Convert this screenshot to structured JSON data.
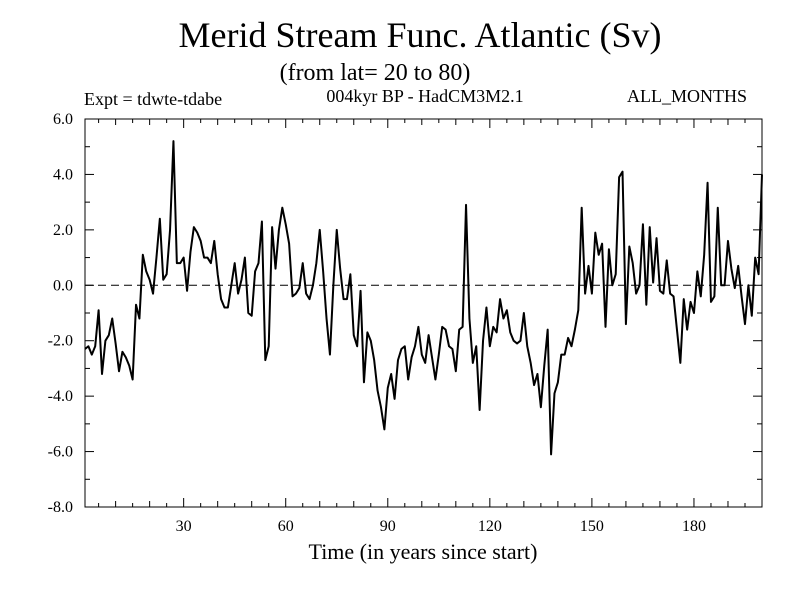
{
  "chart_data": {
    "type": "line",
    "title": "Merid Stream Func. Atlantic (Sv)",
    "subtitle": "(from lat= 20 to 80)",
    "experiment": "Expt = tdwte-tdabe",
    "model": "004kyr BP - HadCM3M2.1",
    "season": "ALL_MONTHS",
    "xlabel": "Time (in years since start)",
    "ylabel": "",
    "xlim": [
      1,
      200
    ],
    "ylim": [
      -8.0,
      6.0
    ],
    "xticks": [
      30,
      60,
      90,
      120,
      150,
      180
    ],
    "yticks": [
      6.0,
      4.0,
      2.0,
      0.0,
      -2.0,
      -4.0,
      -6.0,
      -8.0
    ],
    "ytick_labels": [
      "6.0",
      "4.0",
      "2.0",
      "0.0",
      "-2.0",
      "-4.0",
      "-6.0",
      "-8.0"
    ],
    "reference_line": {
      "y": 0.0,
      "style": "dashed"
    },
    "grid": false,
    "line_color": "#000000",
    "series": [
      {
        "name": "tdwte-tdabe",
        "x_start": 1,
        "x_step": 1,
        "values": [
          -2.3,
          -2.2,
          -2.5,
          -2.2,
          -0.9,
          -3.2,
          -2.0,
          -1.8,
          -1.2,
          -2.1,
          -3.1,
          -2.4,
          -2.6,
          -2.9,
          -3.4,
          -0.7,
          -1.2,
          1.1,
          0.5,
          0.2,
          -0.3,
          1.0,
          2.4,
          0.2,
          0.4,
          2.0,
          5.2,
          0.8,
          0.8,
          1.0,
          -0.2,
          1.2,
          2.1,
          1.9,
          1.6,
          1.0,
          1.0,
          0.8,
          1.6,
          0.4,
          -0.5,
          -0.8,
          -0.8,
          0.0,
          0.8,
          -0.3,
          0.2,
          1.0,
          -1.0,
          -1.1,
          0.5,
          0.8,
          2.3,
          -2.7,
          -2.2,
          2.1,
          0.6,
          2.0,
          2.8,
          2.2,
          1.5,
          -0.4,
          -0.3,
          -0.1,
          0.8,
          -0.3,
          -0.5,
          0.0,
          0.8,
          2.0,
          0.5,
          -1.2,
          -2.5,
          0.0,
          2.0,
          0.6,
          -0.5,
          -0.5,
          0.4,
          -1.8,
          -2.2,
          -0.2,
          -3.5,
          -1.7,
          -2.0,
          -2.7,
          -3.8,
          -4.4,
          -5.2,
          -3.7,
          -3.2,
          -4.1,
          -2.7,
          -2.3,
          -2.2,
          -3.4,
          -2.6,
          -2.2,
          -1.5,
          -2.5,
          -2.8,
          -1.8,
          -2.6,
          -3.4,
          -2.5,
          -1.5,
          -1.6,
          -2.2,
          -2.3,
          -3.1,
          -1.6,
          -1.5,
          2.9,
          -1.2,
          -2.8,
          -2.2,
          -4.5,
          -2.0,
          -0.8,
          -2.2,
          -1.5,
          -1.7,
          -0.5,
          -1.2,
          -0.9,
          -1.7,
          -2.0,
          -2.1,
          -2.0,
          -1.0,
          -2.2,
          -2.8,
          -3.6,
          -3.2,
          -4.4,
          -2.9,
          -1.6,
          -6.1,
          -3.9,
          -3.5,
          -2.5,
          -2.5,
          -1.9,
          -2.2,
          -1.6,
          -0.9,
          2.8,
          -0.3,
          0.7,
          -0.3,
          1.9,
          1.1,
          1.5,
          -1.5,
          1.3,
          0.0,
          0.4,
          3.9,
          4.1,
          -1.4,
          1.4,
          0.8,
          -0.3,
          0.0,
          2.2,
          -0.7,
          2.1,
          0.1,
          1.7,
          -0.2,
          -0.3,
          0.9,
          -0.3,
          -0.4,
          -1.6,
          -2.8,
          -0.5,
          -1.6,
          -0.6,
          -1.0,
          0.5,
          -0.4,
          1.1,
          3.7,
          -0.6,
          -0.4,
          2.8,
          0.0,
          0.0,
          1.6,
          0.6,
          -0.1,
          0.7,
          -0.4,
          -1.4,
          0.0,
          -1.1,
          1.0,
          0.4,
          4.0
        ]
      }
    ]
  }
}
